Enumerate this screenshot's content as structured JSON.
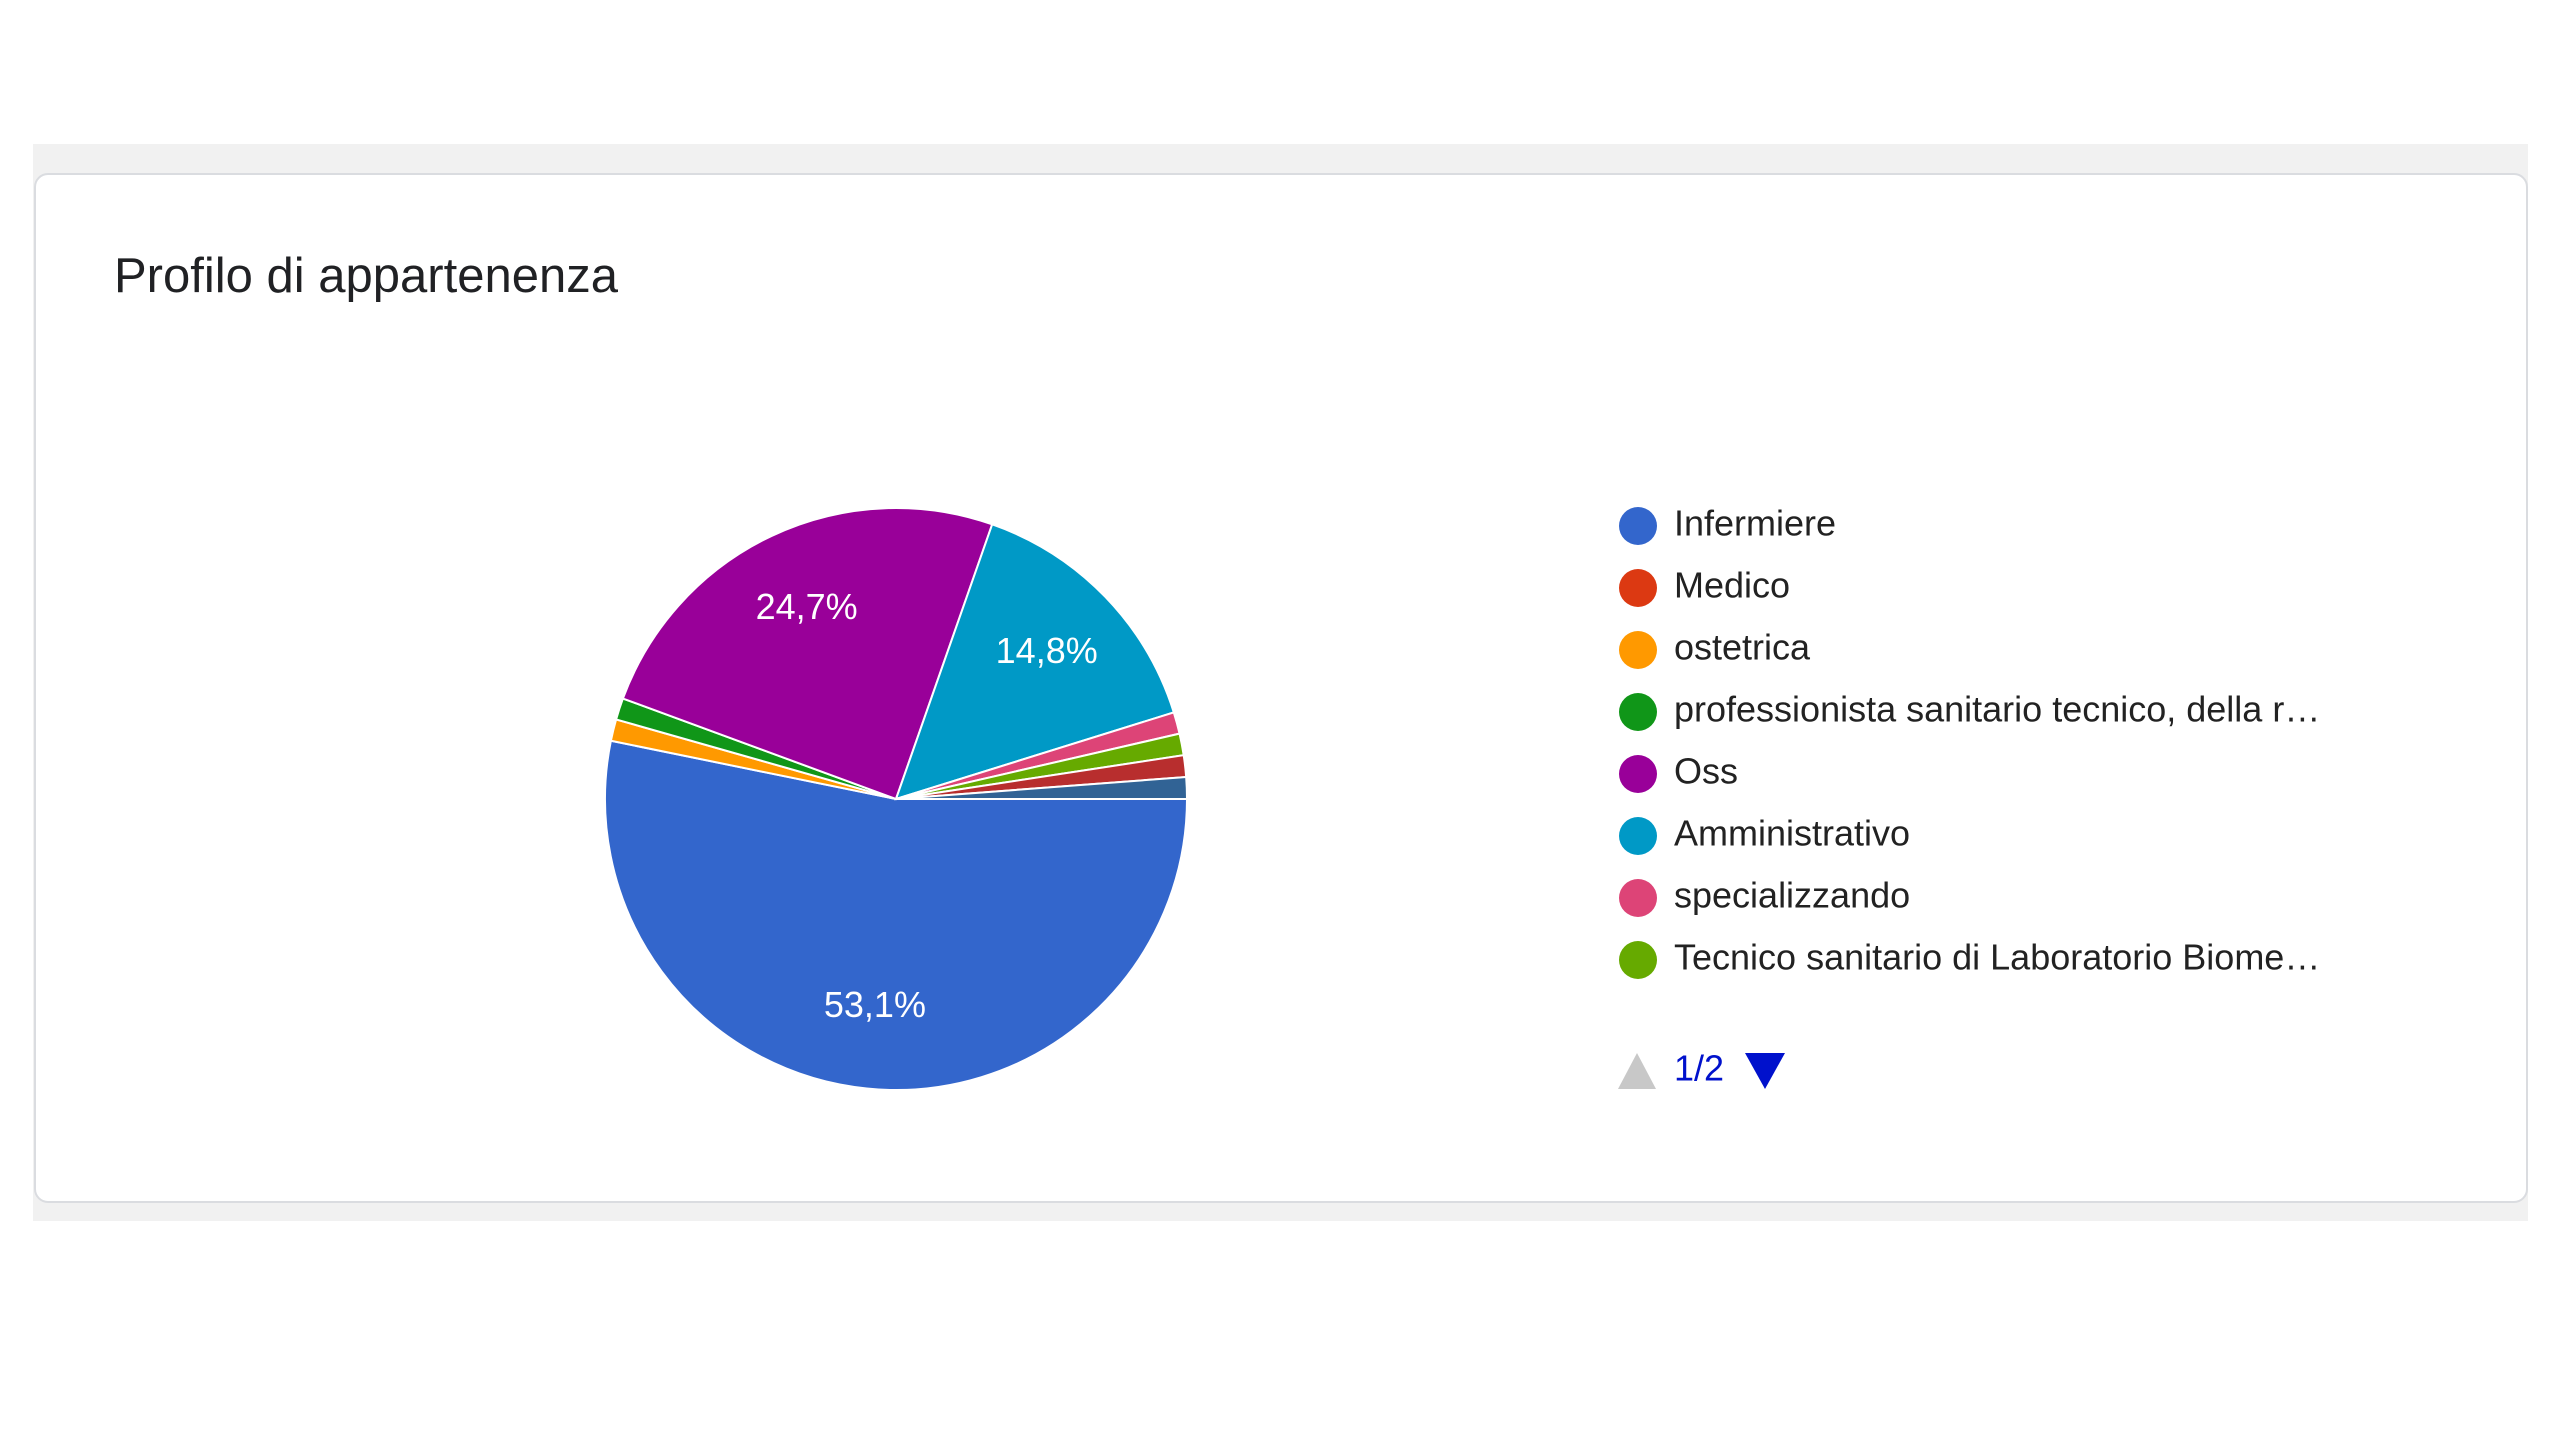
{
  "chart_data": {
    "type": "pie",
    "title": "Profilo di appartenenza",
    "categories": [
      "Infermiere",
      "Medico",
      "ostetrica",
      "professionista sanitario tecnico, della r…",
      "Oss",
      "Amministrativo",
      "specializzando",
      "Tecnico sanitario di Laboratorio Biome…",
      null,
      null
    ],
    "values": [
      53.1,
      0,
      1.2,
      1.2,
      24.7,
      14.8,
      1.2,
      1.2,
      1.2,
      1.2
    ],
    "value_labels": [
      "53,1%",
      null,
      null,
      null,
      "24,7%",
      "14,8%",
      null,
      null,
      null,
      null
    ],
    "colors": [
      "#3366cc",
      "#dc3912",
      "#ff9900",
      "#109618",
      "#990099",
      "#0099c6",
      "#dd4477",
      "#66aa00",
      "#b82e2e",
      "#316395"
    ],
    "legend_visible_count": 8,
    "legend_page": "1/2"
  }
}
